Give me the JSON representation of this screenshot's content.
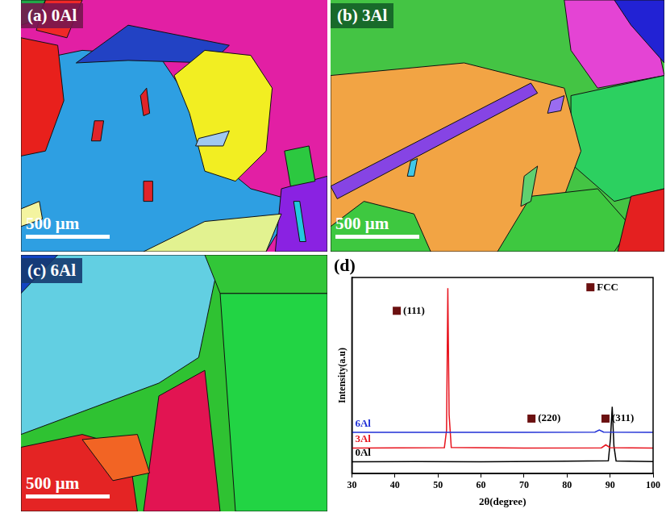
{
  "panels": [
    {
      "label": "(a) 0Al",
      "scale_bar": "500 μm"
    },
    {
      "label": "(b) 3Al",
      "scale_bar": "500 μm"
    },
    {
      "label": "(c) 6Al",
      "scale_bar": "500 μm"
    }
  ],
  "chart_data": {
    "type": "line",
    "panel_label": "(d)",
    "x_label": "2θ(degree)",
    "y_label": "Intensity(a.u)",
    "xlim": [
      30,
      100
    ],
    "xticks": [
      30,
      40,
      50,
      60,
      70,
      80,
      90,
      100
    ],
    "ylim": [
      0,
      100
    ],
    "tick_labels": "x",
    "grid": false,
    "series": [
      {
        "name": "6Al",
        "color": "#1f2fd6",
        "line_style": "solid",
        "x": [
          30,
          50,
          70,
          86.5,
          87.5,
          88.5,
          100
        ],
        "values": [
          21,
          21,
          21,
          21.1,
          22.2,
          21.1,
          21
        ]
      },
      {
        "name": "3Al",
        "color": "#e8141e",
        "line_style": "solid",
        "x": [
          30,
          51.5,
          52.0,
          52.3,
          52.6,
          53.1,
          70,
          88,
          89,
          90,
          100
        ],
        "values": [
          13,
          13.2,
          22,
          94.5,
          30,
          13.3,
          13,
          13.1,
          14.6,
          13.2,
          13
        ]
      },
      {
        "name": "0Al",
        "color": "#000000",
        "line_style": "solid",
        "x": [
          30,
          45,
          60,
          75,
          89.6,
          90.1,
          90.5,
          90.9,
          91.4,
          100
        ],
        "values": [
          6,
          6.1,
          6,
          6.2,
          6.5,
          18,
          34,
          14,
          6.4,
          6.1
        ]
      }
    ],
    "annotations": [
      {
        "text": "FCC",
        "x": 84.5,
        "y": 95,
        "marker": "square",
        "color": "#6b1010"
      },
      {
        "text": "(111)",
        "x": 39.5,
        "y": 83,
        "marker": "square",
        "color": "#6b1010"
      },
      {
        "text": "(220)",
        "x": 70.8,
        "y": 28,
        "marker": "square",
        "color": "#6b1010"
      },
      {
        "text": "(311)",
        "x": 88,
        "y": 28,
        "marker": "square",
        "color": "#6b1010"
      }
    ]
  }
}
